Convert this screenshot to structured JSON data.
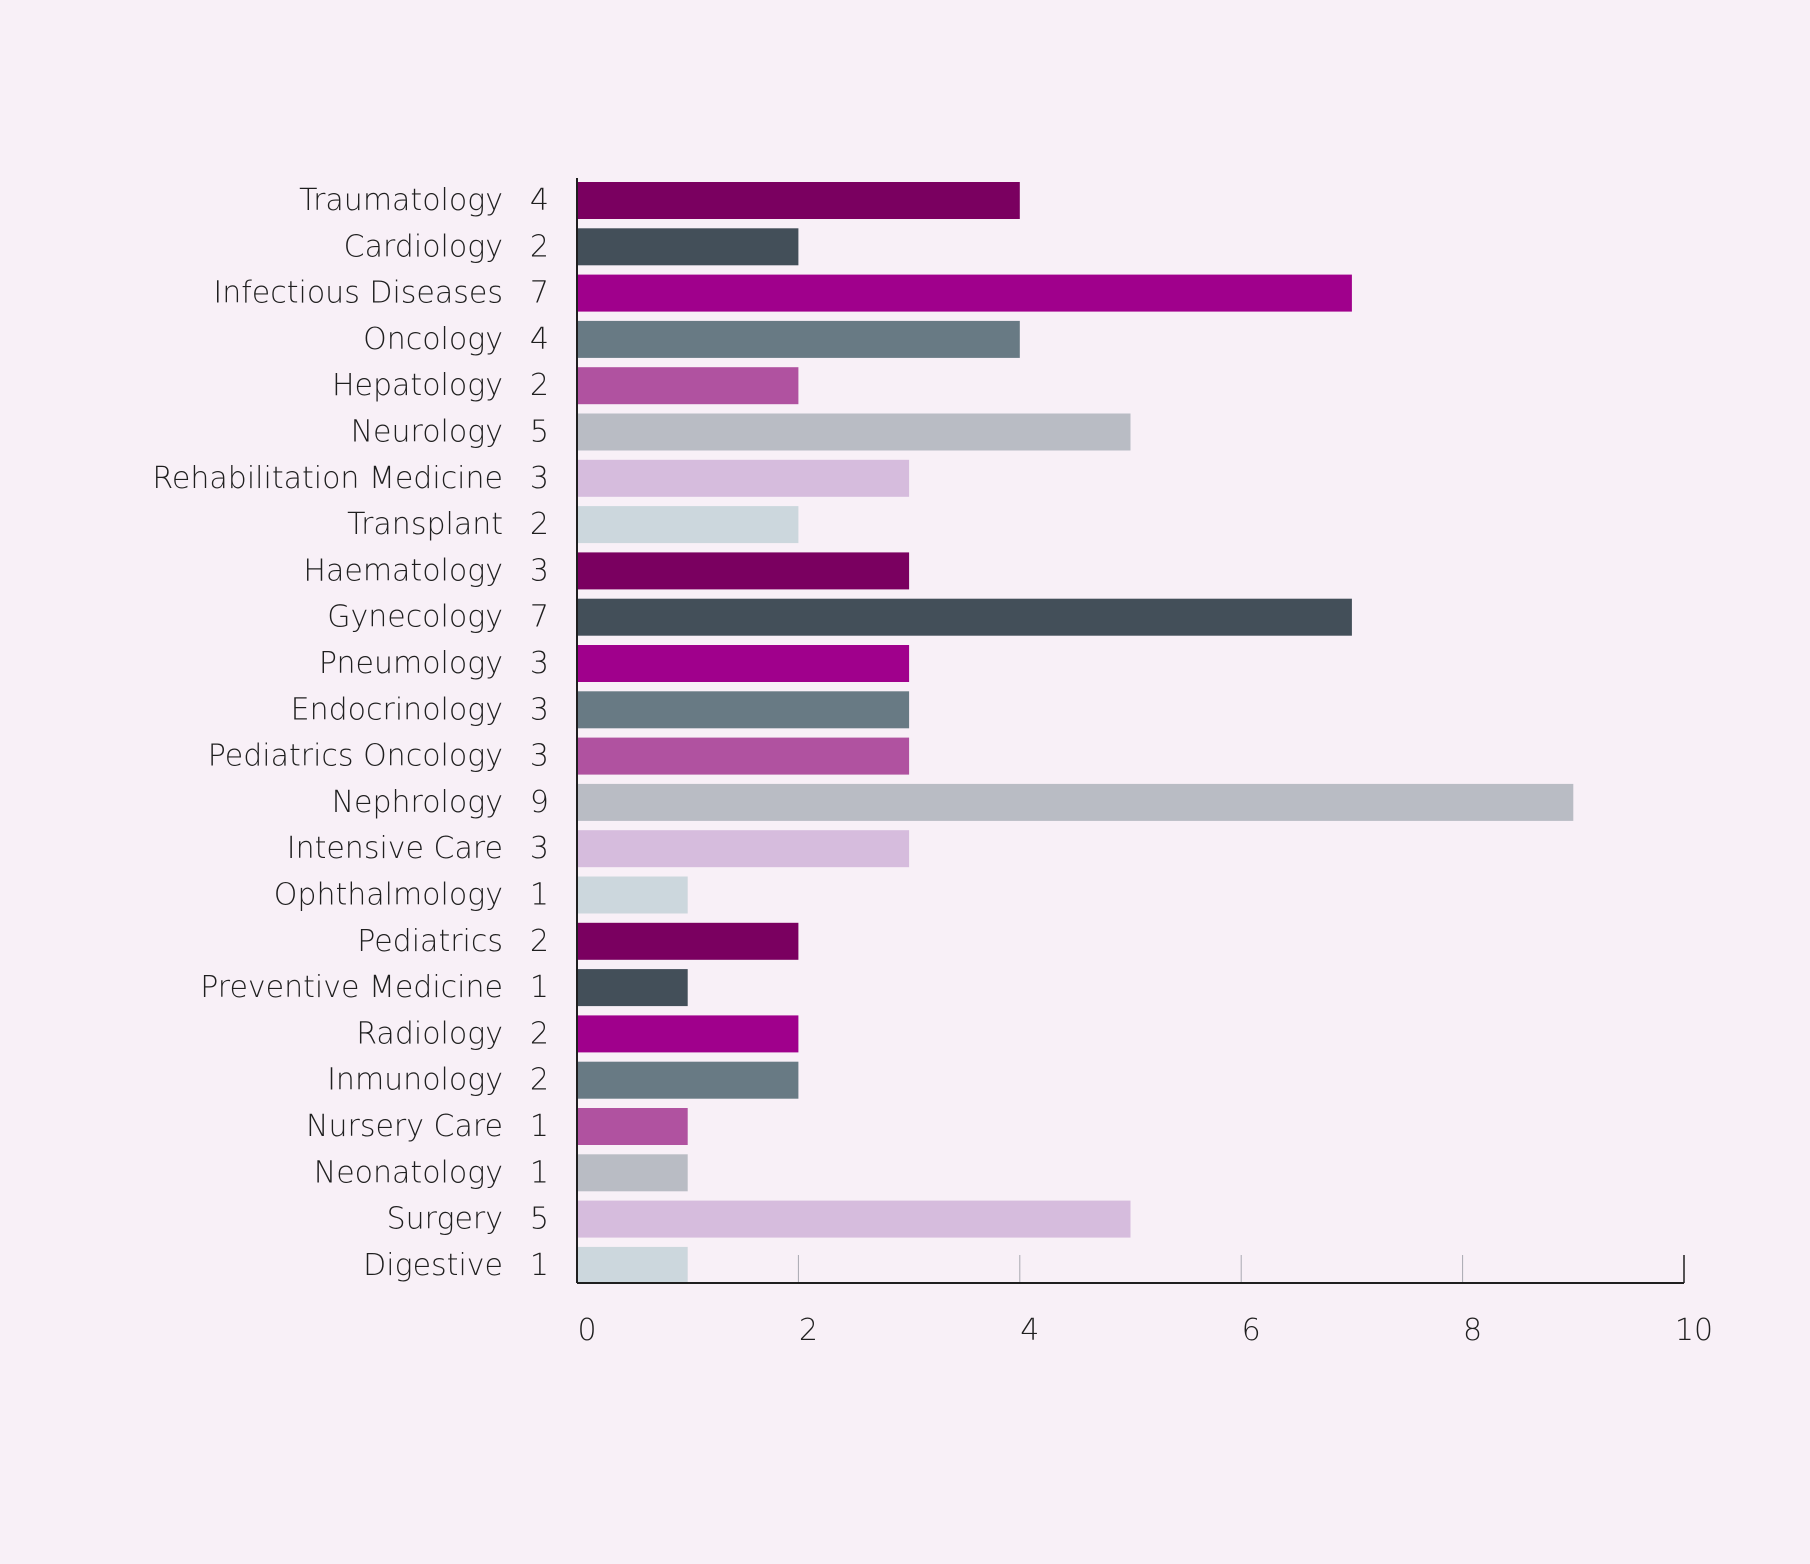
{
  "chart_data": {
    "type": "bar",
    "orientation": "horizontal",
    "title": "",
    "xlabel": "",
    "ylabel": "",
    "xlim": [
      0,
      10
    ],
    "x_ticks": [
      0,
      2,
      4,
      6,
      8,
      10
    ],
    "grid": false,
    "legend": "none",
    "categories": [
      "Traumatology",
      "Cardiology",
      "Infectious Diseases",
      "Oncology",
      "Hepatology",
      "Neurology",
      "Rehabilitation Medicine",
      "Transplant",
      "Haematology",
      "Gynecology",
      "Pneumology",
      "Endocrinology",
      "Pediatrics Oncology",
      "Nephrology",
      "Intensive Care",
      "Ophthalmology",
      "Pediatrics",
      "Preventive Medicine",
      "Radiology",
      "Inmunology",
      "Nursery Care",
      "Neonatology",
      "Surgery",
      "Digestive"
    ],
    "values": [
      4,
      2,
      7,
      4,
      2,
      5,
      3,
      2,
      3,
      7,
      3,
      3,
      3,
      9,
      3,
      1,
      2,
      1,
      2,
      2,
      1,
      1,
      5,
      1
    ],
    "palette": [
      "#7a0060",
      "#434f59",
      "#a0008c",
      "#687a84",
      "#b052a0",
      "#b9bcc4",
      "#d6bcdd",
      "#ccd7dd"
    ],
    "background_color": "#f8f0f7",
    "axis_color": "#1f1f1f"
  }
}
